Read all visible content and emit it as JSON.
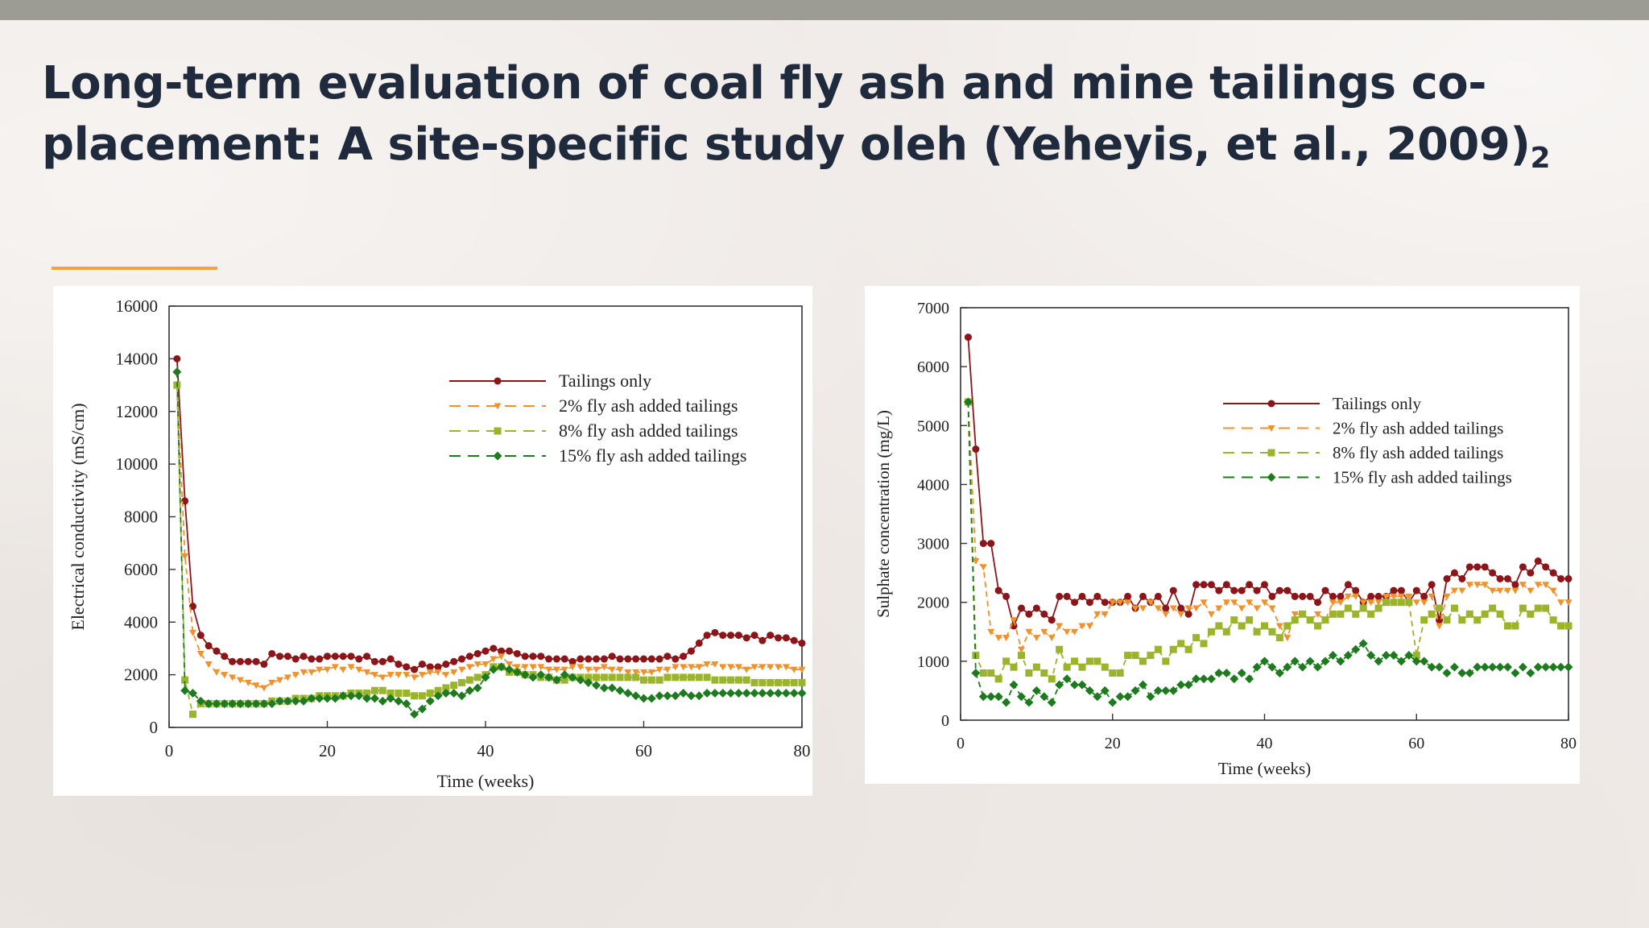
{
  "slide": {
    "title_main": "Long-term evaluation of coal fly ash and mine tailings co-placement: A site-specific study oleh (Yeheyis, et al., 2009)",
    "title_sub": "2",
    "accent_color": "#f0a43a",
    "title_color": "#1f2b3c"
  },
  "chart_data": [
    {
      "type": "line",
      "title": "",
      "xlabel": "Time (weeks)",
      "ylabel": "Electrical conductivity (mS/cm)",
      "xlim": [
        0,
        80
      ],
      "ylim": [
        0,
        16000
      ],
      "xticks": [
        0,
        20,
        40,
        60,
        80
      ],
      "yticks": [
        0,
        2000,
        4000,
        6000,
        8000,
        10000,
        12000,
        14000,
        16000
      ],
      "grid": false,
      "legend_position": "top-right",
      "x": [
        1,
        2,
        3,
        4,
        5,
        6,
        7,
        8,
        9,
        10,
        11,
        12,
        13,
        14,
        15,
        16,
        17,
        18,
        19,
        20,
        21,
        22,
        23,
        24,
        25,
        26,
        27,
        28,
        29,
        30,
        31,
        32,
        33,
        34,
        35,
        36,
        37,
        38,
        39,
        40,
        41,
        42,
        43,
        44,
        45,
        46,
        47,
        48,
        49,
        50,
        51,
        52,
        53,
        54,
        55,
        56,
        57,
        58,
        59,
        60,
        61,
        62,
        63,
        64,
        65,
        66,
        67,
        68,
        69,
        70,
        71,
        72,
        73,
        74,
        75,
        76,
        77,
        78,
        79,
        80
      ],
      "series": [
        {
          "name": "Tailings only",
          "color": "#8b1518",
          "marker": "circle",
          "dash": "solid",
          "values": [
            14000,
            8600,
            4600,
            3500,
            3100,
            2900,
            2700,
            2500,
            2500,
            2500,
            2500,
            2400,
            2800,
            2700,
            2700,
            2600,
            2700,
            2600,
            2600,
            2700,
            2700,
            2700,
            2700,
            2600,
            2700,
            2500,
            2500,
            2600,
            2400,
            2300,
            2200,
            2400,
            2300,
            2300,
            2400,
            2500,
            2600,
            2700,
            2800,
            2900,
            3000,
            2900,
            2900,
            2800,
            2700,
            2700,
            2700,
            2600,
            2600,
            2600,
            2500,
            2600,
            2600,
            2600,
            2600,
            2700,
            2600,
            2600,
            2600,
            2600,
            2600,
            2600,
            2700,
            2600,
            2700,
            2900,
            3200,
            3500,
            3600,
            3500,
            3500,
            3500,
            3400,
            3500,
            3300,
            3500,
            3400,
            3400,
            3300,
            3200
          ]
        },
        {
          "name": "2% fly ash added tailings",
          "color": "#f0922b",
          "marker": "triangle-down",
          "dash": "dash",
          "values": [
            13000,
            6500,
            3600,
            2800,
            2400,
            2100,
            2000,
            1900,
            1800,
            1700,
            1600,
            1500,
            1700,
            1800,
            1900,
            2000,
            2100,
            2100,
            2200,
            2200,
            2300,
            2200,
            2300,
            2200,
            2100,
            2000,
            1900,
            2000,
            2000,
            2000,
            1900,
            2000,
            2100,
            2100,
            2000,
            2100,
            2200,
            2300,
            2400,
            2400,
            2600,
            2700,
            2400,
            2300,
            2300,
            2300,
            2300,
            2200,
            2200,
            2200,
            2300,
            2300,
            2200,
            2200,
            2300,
            2200,
            2200,
            2100,
            2100,
            2100,
            2100,
            2200,
            2200,
            2300,
            2300,
            2300,
            2300,
            2400,
            2400,
            2300,
            2300,
            2300,
            2200,
            2300,
            2300,
            2300,
            2300,
            2300,
            2200,
            2200
          ]
        },
        {
          "name": "8% fly ash added tailings",
          "color": "#9ab52b",
          "marker": "square",
          "dash": "dash",
          "values": [
            13000,
            1800,
            500,
            900,
            900,
            900,
            900,
            900,
            900,
            900,
            900,
            900,
            1000,
            1000,
            1000,
            1100,
            1100,
            1100,
            1200,
            1200,
            1200,
            1200,
            1300,
            1300,
            1300,
            1400,
            1400,
            1300,
            1300,
            1300,
            1200,
            1200,
            1300,
            1400,
            1500,
            1600,
            1700,
            1800,
            1900,
            2000,
            2300,
            2300,
            2100,
            2100,
            2000,
            2000,
            1900,
            1900,
            1800,
            1800,
            1900,
            1900,
            1900,
            1900,
            1900,
            1900,
            1900,
            1900,
            1900,
            1800,
            1800,
            1800,
            1900,
            1900,
            1900,
            1900,
            1900,
            1900,
            1800,
            1800,
            1800,
            1800,
            1800,
            1700,
            1700,
            1700,
            1700,
            1700,
            1700,
            1700
          ]
        },
        {
          "name": "15% fly ash added tailings",
          "color": "#1e7a1e",
          "marker": "diamond",
          "dash": "dash",
          "values": [
            13500,
            1400,
            1300,
            1000,
            900,
            900,
            900,
            900,
            900,
            900,
            900,
            900,
            900,
            1000,
            1000,
            1000,
            1000,
            1100,
            1100,
            1100,
            1100,
            1200,
            1200,
            1200,
            1100,
            1100,
            1000,
            1100,
            1000,
            900,
            500,
            700,
            1000,
            1200,
            1300,
            1300,
            1200,
            1400,
            1500,
            1900,
            2200,
            2300,
            2200,
            2100,
            2000,
            1900,
            2000,
            1900,
            1800,
            2000,
            1900,
            1800,
            1700,
            1600,
            1500,
            1500,
            1400,
            1300,
            1200,
            1100,
            1100,
            1200,
            1200,
            1200,
            1300,
            1200,
            1200,
            1300,
            1300,
            1300,
            1300,
            1300,
            1300,
            1300,
            1300,
            1300,
            1300,
            1300,
            1300,
            1300
          ]
        }
      ]
    },
    {
      "type": "line",
      "title": "",
      "xlabel": "Time (weeks)",
      "ylabel": "Sulphate concentration (mg/L)",
      "xlim": [
        0,
        80
      ],
      "ylim": [
        0,
        7000
      ],
      "xticks": [
        0,
        20,
        40,
        60,
        80
      ],
      "yticks": [
        0,
        1000,
        2000,
        3000,
        4000,
        5000,
        6000,
        7000
      ],
      "grid": false,
      "legend_position": "top-right",
      "x": [
        1,
        2,
        3,
        4,
        5,
        6,
        7,
        8,
        9,
        10,
        11,
        12,
        13,
        14,
        15,
        16,
        17,
        18,
        19,
        20,
        21,
        22,
        23,
        24,
        25,
        26,
        27,
        28,
        29,
        30,
        31,
        32,
        33,
        34,
        35,
        36,
        37,
        38,
        39,
        40,
        41,
        42,
        43,
        44,
        45,
        46,
        47,
        48,
        49,
        50,
        51,
        52,
        53,
        54,
        55,
        56,
        57,
        58,
        59,
        60,
        61,
        62,
        63,
        64,
        65,
        66,
        67,
        68,
        69,
        70,
        71,
        72,
        73,
        74,
        75,
        76,
        77,
        78,
        79,
        80
      ],
      "series": [
        {
          "name": "Tailings only",
          "color": "#8b1518",
          "marker": "circle",
          "dash": "solid",
          "values": [
            6500,
            4600,
            3000,
            3000,
            2200,
            2100,
            1600,
            1900,
            1800,
            1900,
            1800,
            1700,
            2100,
            2100,
            2000,
            2100,
            2000,
            2100,
            2000,
            2000,
            2000,
            2100,
            1900,
            2100,
            2000,
            2100,
            1900,
            2200,
            1900,
            1800,
            2300,
            2300,
            2300,
            2200,
            2300,
            2200,
            2200,
            2300,
            2200,
            2300,
            2100,
            2200,
            2200,
            2100,
            2100,
            2100,
            2000,
            2200,
            2100,
            2100,
            2300,
            2200,
            2000,
            2100,
            2100,
            2100,
            2200,
            2200,
            2000,
            2200,
            2100,
            2300,
            1700,
            2400,
            2500,
            2400,
            2600,
            2600,
            2600,
            2500,
            2400,
            2400,
            2300,
            2600,
            2500,
            2700,
            2600,
            2500,
            2400,
            2400
          ]
        },
        {
          "name": "2% fly ash added tailings",
          "color": "#f0922b",
          "marker": "triangle-down",
          "dash": "dash",
          "values": [
            5400,
            2700,
            2600,
            1500,
            1400,
            1400,
            1700,
            1200,
            1500,
            1400,
            1500,
            1400,
            1600,
            1500,
            1500,
            1600,
            1600,
            1800,
            1800,
            2000,
            2000,
            2000,
            1900,
            1900,
            2000,
            1900,
            1800,
            1900,
            1800,
            1900,
            1900,
            2000,
            1800,
            1900,
            2000,
            2000,
            1900,
            2000,
            1900,
            2000,
            1900,
            1600,
            1400,
            1800,
            1800,
            1700,
            1800,
            1700,
            2000,
            2000,
            2100,
            2100,
            2000,
            2000,
            2000,
            2100,
            2100,
            2100,
            2100,
            2000,
            2000,
            2100,
            1600,
            2100,
            2200,
            2200,
            2300,
            2300,
            2300,
            2200,
            2200,
            2200,
            2200,
            2300,
            2200,
            2300,
            2300,
            2200,
            2000,
            2000
          ]
        },
        {
          "name": "8% fly ash added tailings",
          "color": "#9ab52b",
          "marker": "square",
          "dash": "dash",
          "values": [
            5400,
            1100,
            800,
            800,
            700,
            1000,
            900,
            1100,
            800,
            900,
            800,
            700,
            1200,
            900,
            1000,
            900,
            1000,
            1000,
            900,
            800,
            800,
            1100,
            1100,
            1000,
            1100,
            1200,
            1000,
            1200,
            1300,
            1200,
            1400,
            1300,
            1500,
            1600,
            1500,
            1700,
            1600,
            1700,
            1500,
            1600,
            1500,
            1400,
            1600,
            1700,
            1800,
            1700,
            1600,
            1700,
            1800,
            1800,
            1900,
            1800,
            1900,
            1800,
            1900,
            2000,
            2000,
            2000,
            2000,
            1100,
            1700,
            1800,
            1900,
            1700,
            1900,
            1700,
            1800,
            1700,
            1800,
            1900,
            1800,
            1600,
            1600,
            1900,
            1800,
            1900,
            1900,
            1700,
            1600,
            1600
          ]
        },
        {
          "name": "15% fly ash added tailings",
          "color": "#1e7a1e",
          "marker": "diamond",
          "dash": "dash",
          "values": [
            5400,
            800,
            400,
            400,
            400,
            300,
            600,
            400,
            300,
            500,
            400,
            300,
            600,
            700,
            600,
            600,
            500,
            400,
            500,
            300,
            400,
            400,
            500,
            600,
            400,
            500,
            500,
            500,
            600,
            600,
            700,
            700,
            700,
            800,
            800,
            700,
            800,
            700,
            900,
            1000,
            900,
            800,
            900,
            1000,
            900,
            1000,
            900,
            1000,
            1100,
            1000,
            1100,
            1200,
            1300,
            1100,
            1000,
            1100,
            1100,
            1000,
            1100,
            1000,
            1000,
            900,
            900,
            800,
            900,
            800,
            800,
            900,
            900,
            900,
            900,
            900,
            800,
            900,
            800,
            900,
            900,
            900,
            900,
            900
          ]
        }
      ]
    }
  ]
}
